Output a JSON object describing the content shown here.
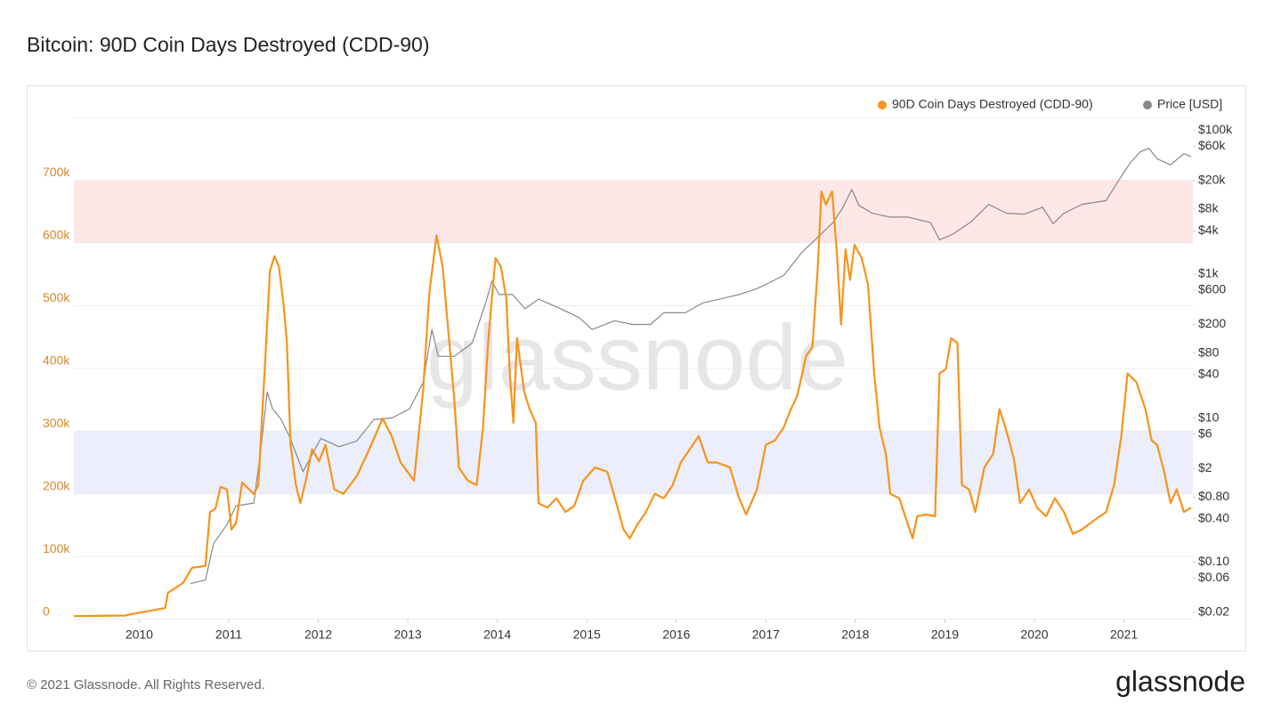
{
  "chart_data": {
    "type": "line",
    "title": "Bitcoin: 90D Coin Days Destroyed (CDD-90)",
    "watermark": "glassnode",
    "footer": "© 2021 Glassnode. All Rights Reserved.",
    "logo": "glassnode",
    "xlim": [
      2009.27,
      2021.77
    ],
    "xticks": [
      2010,
      2011,
      2012,
      2013,
      2014,
      2015,
      2016,
      2017,
      2018,
      2019,
      2020,
      2021
    ],
    "ylim": [
      0,
      800000
    ],
    "yticks": [
      0,
      {
        "value": 100000,
        "label": "100k"
      },
      {
        "value": 200000,
        "label": "200k"
      },
      {
        "value": 300000,
        "label": "300k"
      },
      {
        "value": 400000,
        "label": "400k"
      },
      {
        "value": 500000,
        "label": "500k"
      },
      {
        "value": 600000,
        "label": "600k"
      },
      {
        "value": 700000,
        "label": "700k"
      }
    ],
    "y2lim": [
      0.016,
      150000
    ],
    "y2log": true,
    "y2ticks": [
      {
        "value": 100000,
        "label": "$100k"
      },
      {
        "value": 60000,
        "label": "$60k"
      },
      {
        "value": 20000,
        "label": "$20k"
      },
      {
        "value": 8000,
        "label": "$8k"
      },
      {
        "value": 4000,
        "label": "$4k"
      },
      {
        "value": 1000,
        "label": "$1k"
      },
      {
        "value": 600,
        "label": "$600"
      },
      {
        "value": 200,
        "label": "$200"
      },
      {
        "value": 80,
        "label": "$80"
      },
      {
        "value": 40,
        "label": "$40"
      },
      {
        "value": 10,
        "label": "$10"
      },
      {
        "value": 6,
        "label": "$6"
      },
      {
        "value": 2,
        "label": "$2"
      },
      {
        "value": 0.8,
        "label": "$0.80"
      },
      {
        "value": 0.4,
        "label": "$0.40"
      },
      {
        "value": 0.1,
        "label": "$0.10"
      },
      {
        "value": 0.06,
        "label": "$0.06"
      },
      {
        "value": 0.02,
        "label": "$0.02"
      }
    ],
    "grid": true,
    "legend": "top-right",
    "bands": [
      {
        "from": 600000,
        "to": 700000,
        "color": "#fde7e7"
      },
      {
        "from": 200000,
        "to": 300000,
        "color": "#eceefb"
      }
    ],
    "series": [
      {
        "name": "90D Coin Days Destroyed (CDD-90)",
        "color": "#f7931a",
        "x": [
          2009.27,
          2009.84,
          2009.94,
          2010.14,
          2010.29,
          2010.32,
          2010.49,
          2010.59,
          2010.74,
          2010.79,
          2010.85,
          2010.91,
          2010.98,
          2011.03,
          2011.08,
          2011.15,
          2011.28,
          2011.33,
          2011.41,
          2011.46,
          2011.51,
          2011.56,
          2011.61,
          2011.65,
          2011.69,
          2011.75,
          2011.8,
          2011.86,
          2011.93,
          2012.01,
          2012.08,
          2012.18,
          2012.28,
          2012.43,
          2012.57,
          2012.72,
          2012.82,
          2012.92,
          2013.07,
          2013.17,
          2013.24,
          2013.32,
          2013.39,
          2013.46,
          2013.52,
          2013.57,
          2013.67,
          2013.77,
          2013.84,
          2013.9,
          2013.98,
          2014.04,
          2014.1,
          2014.14,
          2014.18,
          2014.22,
          2014.3,
          2014.36,
          2014.43,
          2014.46,
          2014.56,
          2014.66,
          2014.76,
          2014.86,
          2014.96,
          2015.09,
          2015.23,
          2015.33,
          2015.41,
          2015.48,
          2015.56,
          2015.66,
          2015.76,
          2015.86,
          2015.96,
          2016.05,
          2016.15,
          2016.25,
          2016.35,
          2016.45,
          2016.6,
          2016.7,
          2016.78,
          2016.9,
          2017.0,
          2017.1,
          2017.2,
          2017.28,
          2017.35,
          2017.45,
          2017.52,
          2017.58,
          2017.62,
          2017.67,
          2017.74,
          2017.79,
          2017.84,
          2017.89,
          2017.94,
          2017.99,
          2018.07,
          2018.14,
          2018.21,
          2018.27,
          2018.34,
          2018.39,
          2018.49,
          2018.59,
          2018.64,
          2018.69,
          2018.79,
          2018.89,
          2018.94,
          2019.01,
          2019.07,
          2019.14,
          2019.19,
          2019.27,
          2019.34,
          2019.44,
          2019.54,
          2019.61,
          2019.69,
          2019.77,
          2019.84,
          2019.94,
          2020.03,
          2020.13,
          2020.23,
          2020.33,
          2020.43,
          2020.53,
          2020.66,
          2020.8,
          2020.89,
          2020.97,
          2021.04,
          2021.14,
          2021.24,
          2021.31,
          2021.37,
          2021.45,
          2021.52,
          2021.59,
          2021.67,
          2021.75
        ],
        "values": [
          5000,
          6000,
          9000,
          14000,
          18000,
          42000,
          58000,
          82000,
          85000,
          171000,
          176000,
          211000,
          207000,
          143000,
          153000,
          218000,
          200000,
          214000,
          420000,
          555000,
          579000,
          562000,
          505000,
          441000,
          278000,
          214000,
          185000,
          221000,
          271000,
          252000,
          278000,
          207000,
          200000,
          228000,
          271000,
          320000,
          292000,
          250000,
          221000,
          363000,
          519000,
          612000,
          562000,
          448000,
          349000,
          242000,
          221000,
          214000,
          306000,
          448000,
          576000,
          562000,
          512000,
          392000,
          313000,
          448000,
          363000,
          335000,
          313000,
          185000,
          178000,
          193000,
          171000,
          181000,
          221000,
          242000,
          235000,
          185000,
          143000,
          129000,
          150000,
          171000,
          200000,
          193000,
          214000,
          250000,
          271000,
          292000,
          250000,
          250000,
          242000,
          193000,
          167000,
          207000,
          278000,
          285000,
          306000,
          335000,
          356000,
          420000,
          434000,
          562000,
          682000,
          661000,
          682000,
          590000,
          470000,
          590000,
          541000,
          597000,
          576000,
          534000,
          392000,
          306000,
          264000,
          200000,
          193000,
          150000,
          129000,
          164000,
          167000,
          164000,
          392000,
          399000,
          448000,
          441000,
          214000,
          207000,
          171000,
          242000,
          264000,
          335000,
          299000,
          256000,
          185000,
          207000,
          178000,
          164000,
          193000,
          171000,
          136000,
          143000,
          157000,
          171000,
          214000,
          292000,
          392000,
          378000,
          335000,
          285000,
          278000,
          235000,
          185000,
          207000,
          171000,
          178000
        ]
      },
      {
        "name": "Price [USD]",
        "color": "#888888",
        "axis": "y2",
        "x": [
          2010.57,
          2010.74,
          2010.83,
          2010.98,
          2011.08,
          2011.28,
          2011.35,
          2011.43,
          2011.49,
          2011.58,
          2011.68,
          2011.83,
          2011.93,
          2012.03,
          2012.23,
          2012.43,
          2012.62,
          2012.82,
          2013.02,
          2013.17,
          2013.27,
          2013.34,
          2013.52,
          2013.72,
          2013.87,
          2013.94,
          2014.02,
          2014.17,
          2014.31,
          2014.46,
          2014.71,
          2014.91,
          2015.06,
          2015.31,
          2015.51,
          2015.71,
          2015.86,
          2016.1,
          2016.3,
          2016.45,
          2016.7,
          2016.89,
          2017.0,
          2017.2,
          2017.4,
          2017.55,
          2017.75,
          2017.85,
          2017.96,
          2018.04,
          2018.19,
          2018.39,
          2018.59,
          2018.84,
          2018.94,
          2019.09,
          2019.29,
          2019.49,
          2019.69,
          2019.89,
          2020.09,
          2020.21,
          2020.33,
          2020.53,
          2020.8,
          2020.94,
          2021.07,
          2021.18,
          2021.28,
          2021.37,
          2021.52,
          2021.67,
          2021.75
        ],
        "values": [
          0.05,
          0.056,
          0.18,
          0.33,
          0.6,
          0.66,
          3.1,
          23,
          13.4,
          9.8,
          5.5,
          1.8,
          3.1,
          5.2,
          4,
          4.8,
          9.5,
          10,
          13.4,
          31,
          170,
          72,
          72,
          110,
          400,
          800,
          520,
          520,
          330,
          450,
          330,
          250,
          170,
          225,
          200,
          200,
          290,
          290,
          400,
          440,
          520,
          620,
          720,
          960,
          2000,
          3000,
          5200,
          8000,
          15000,
          9000,
          7000,
          6200,
          6200,
          5200,
          3000,
          3600,
          5300,
          9300,
          7000,
          6800,
          8500,
          5000,
          7000,
          9300,
          10500,
          20000,
          35000,
          50000,
          56000,
          40000,
          33000,
          47000,
          43000
        ]
      }
    ]
  }
}
